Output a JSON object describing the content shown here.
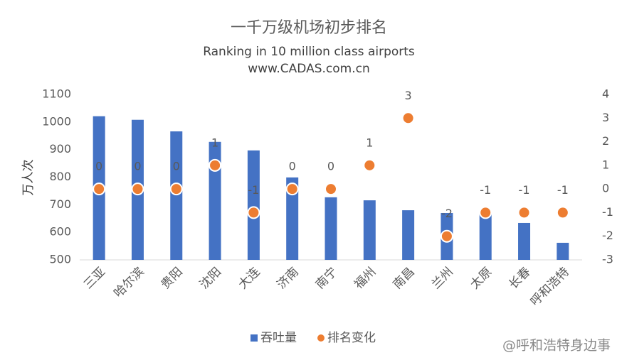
{
  "chart_data": {
    "type": "bar",
    "title": "一千万级机场初步排名",
    "subtitle": "Ranking in 10 million class airports",
    "source": "www.CADAS.com.cn",
    "y_label": "万人次",
    "watermark": "@呼和浩特身边事",
    "categories": [
      "三亚",
      "哈尔滨",
      "贵阳",
      "沈阳",
      "大连",
      "济南",
      "南宁",
      "福州",
      "南昌",
      "兰州",
      "太原",
      "长春",
      "呼和浩特"
    ],
    "series": [
      {
        "name": "吞吐量",
        "type": "bar",
        "color": "#4472c4",
        "values": [
          1021,
          1008,
          966,
          928,
          897,
          799,
          727,
          716,
          680,
          670,
          670,
          634,
          562
        ]
      },
      {
        "name": "排名变化",
        "type": "scatter",
        "axis": "y2",
        "color": "#ed7d31",
        "values": [
          0,
          0,
          0,
          1,
          -1,
          0,
          0,
          1,
          3,
          -2,
          -1,
          -1,
          -1
        ]
      }
    ],
    "ylim": [
      500,
      1100
    ],
    "yticks": [
      500,
      600,
      700,
      800,
      900,
      1000,
      1100
    ],
    "y2lim": [
      -3,
      4
    ],
    "y2ticks": [
      -3,
      -2,
      -1,
      0,
      1,
      2,
      3,
      4
    ],
    "grid": false,
    "legend": "bottom"
  }
}
